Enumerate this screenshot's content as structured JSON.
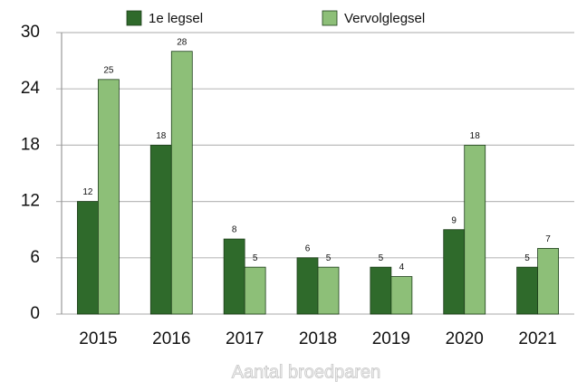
{
  "chart_data": {
    "type": "bar",
    "x_label": "Aantal broedparen",
    "categories": [
      "2015",
      "2016",
      "2017",
      "2018",
      "2019",
      "2020",
      "2021"
    ],
    "series": [
      {
        "name": "1e legsel",
        "color": "#2f6a2b",
        "values": [
          12,
          18,
          8,
          6,
          5,
          9,
          5
        ]
      },
      {
        "name": "Vervolglegsel",
        "color": "#8dbf78",
        "values": [
          25,
          28,
          5,
          5,
          4,
          18,
          7
        ]
      }
    ],
    "ylim": [
      0,
      30
    ],
    "yticks": [
      0,
      6,
      12,
      18,
      24,
      30
    ],
    "grid": true,
    "legend": "top"
  }
}
